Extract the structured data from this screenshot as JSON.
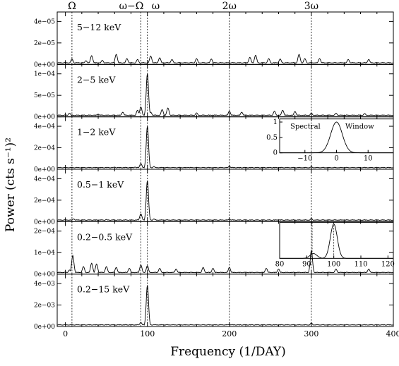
{
  "chart_data": {
    "type": "line",
    "xlabel": "Frequency (1/DAY)",
    "ylabel": "Power (cts s⁻¹)²",
    "xlim": [
      -10,
      400
    ],
    "x_ticks": [
      "0",
      "100",
      "200",
      "300",
      "400"
    ],
    "top_labels": [
      {
        "label": "Ω",
        "x": 8
      },
      {
        "label": "ω−Ω",
        "x": 92
      },
      {
        "label": "ω",
        "x": 100
      },
      {
        "label": "2ω",
        "x": 200
      },
      {
        "label": "3ω",
        "x": 300
      }
    ],
    "marker_lines": [
      8,
      92,
      100,
      200,
      300
    ],
    "panels": [
      {
        "band": "5−12 keV",
        "ylim": [
          0,
          5e-05
        ],
        "y_ticks": [
          "0e+00",
          "2e−05",
          "4e−05"
        ],
        "peaks": [
          {
            "x": 8,
            "y": 5.5e-06
          },
          {
            "x": 25,
            "y": 3.5e-06
          },
          {
            "x": 32,
            "y": 9.5e-06
          },
          {
            "x": 45,
            "y": 4e-06
          },
          {
            "x": 62,
            "y": 1.1e-05
          },
          {
            "x": 75,
            "y": 6e-06
          },
          {
            "x": 88,
            "y": 5e-06
          },
          {
            "x": 104,
            "y": 9e-06
          },
          {
            "x": 115,
            "y": 7e-06
          },
          {
            "x": 130,
            "y": 5e-06
          },
          {
            "x": 160,
            "y": 6e-06
          },
          {
            "x": 178,
            "y": 5.5e-06
          },
          {
            "x": 225,
            "y": 7.5e-06
          },
          {
            "x": 232,
            "y": 1e-05
          },
          {
            "x": 248,
            "y": 6e-06
          },
          {
            "x": 262,
            "y": 5.5e-06
          },
          {
            "x": 285,
            "y": 1.1e-05
          },
          {
            "x": 292,
            "y": 6e-06
          },
          {
            "x": 310,
            "y": 6e-06
          },
          {
            "x": 345,
            "y": 5e-06
          },
          {
            "x": 370,
            "y": 5e-06
          }
        ]
      },
      {
        "band": "2−5 keV",
        "ylim": [
          0,
          0.00013
        ],
        "y_ticks": [
          "0e+00",
          "5e−05",
          "1e−04"
        ],
        "peaks": [
          {
            "x": 5,
            "y": 9e-06
          },
          {
            "x": 40,
            "y": 6e-06
          },
          {
            "x": 70,
            "y": 1.2e-05
          },
          {
            "x": 88,
            "y": 1.8e-05
          },
          {
            "x": 92,
            "y": 2.8e-05
          },
          {
            "x": 100,
            "y": 0.00013
          },
          {
            "x": 104,
            "y": 1.2e-05
          },
          {
            "x": 118,
            "y": 2e-05
          },
          {
            "x": 125,
            "y": 2.5e-05
          },
          {
            "x": 160,
            "y": 1e-05
          },
          {
            "x": 200,
            "y": 1.5e-05
          },
          {
            "x": 215,
            "y": 1.2e-05
          },
          {
            "x": 255,
            "y": 1.5e-05
          },
          {
            "x": 265,
            "y": 1.8e-05
          },
          {
            "x": 280,
            "y": 1.4e-05
          },
          {
            "x": 300,
            "y": 9e-06
          },
          {
            "x": 330,
            "y": 9e-06
          },
          {
            "x": 365,
            "y": 8e-06
          }
        ]
      },
      {
        "band": "1−2 keV",
        "ylim": [
          0,
          0.00042
        ],
        "y_ticks": [
          "0e+00",
          "2e−04",
          "4e−04"
        ],
        "peaks": [
          {
            "x": 8,
            "y": 1.2e-05
          },
          {
            "x": 60,
            "y": 1.5e-05
          },
          {
            "x": 85,
            "y": 1.5e-05
          },
          {
            "x": 92,
            "y": 5e-05
          },
          {
            "x": 100,
            "y": 0.00042
          },
          {
            "x": 108,
            "y": 2e-05
          },
          {
            "x": 150,
            "y": 1.2e-05
          },
          {
            "x": 200,
            "y": 2.2e-05
          },
          {
            "x": 250,
            "y": 1.2e-05
          },
          {
            "x": 300,
            "y": 1.8e-05
          },
          {
            "x": 350,
            "y": 1e-05
          }
        ]
      },
      {
        "band": "0.5−1 keV",
        "ylim": [
          0,
          0.00042
        ],
        "y_ticks": [
          "0e+00",
          "2e−04",
          "4e−04"
        ],
        "peaks": [
          {
            "x": 10,
            "y": 2e-05
          },
          {
            "x": 50,
            "y": 1.5e-05
          },
          {
            "x": 92,
            "y": 7e-05
          },
          {
            "x": 100,
            "y": 0.0004
          },
          {
            "x": 108,
            "y": 2e-05
          },
          {
            "x": 160,
            "y": 1.2e-05
          },
          {
            "x": 200,
            "y": 1.8e-05
          },
          {
            "x": 260,
            "y": 1.2e-05
          },
          {
            "x": 300,
            "y": 2.5e-05
          },
          {
            "x": 340,
            "y": 1e-05
          }
        ]
      },
      {
        "band": "0.2−0.5 keV",
        "ylim": [
          0,
          0.00025
        ],
        "y_ticks": [
          "0e+00",
          "1e−04",
          "2e−04"
        ],
        "peaks": [
          {
            "x": 5,
            "y": 2e-05
          },
          {
            "x": 9,
            "y": 0.000105
          },
          {
            "x": 22,
            "y": 4e-05
          },
          {
            "x": 32,
            "y": 6e-05
          },
          {
            "x": 38,
            "y": 5.5e-05
          },
          {
            "x": 50,
            "y": 4e-05
          },
          {
            "x": 62,
            "y": 3.5e-05
          },
          {
            "x": 78,
            "y": 3e-05
          },
          {
            "x": 92,
            "y": 5e-05
          },
          {
            "x": 100,
            "y": 4.5e-05
          },
          {
            "x": 115,
            "y": 3e-05
          },
          {
            "x": 135,
            "y": 2.5e-05
          },
          {
            "x": 168,
            "y": 3.5e-05
          },
          {
            "x": 180,
            "y": 3e-05
          },
          {
            "x": 200,
            "y": 3.5e-05
          },
          {
            "x": 245,
            "y": 3e-05
          },
          {
            "x": 260,
            "y": 2.5e-05
          },
          {
            "x": 300,
            "y": 0.000135
          },
          {
            "x": 330,
            "y": 2.5e-05
          },
          {
            "x": 370,
            "y": 2.5e-05
          }
        ]
      },
      {
        "band": "0.2−15 keV",
        "ylim": [
          0,
          0.0045
        ],
        "y_ticks": [
          "0e+00",
          "2e−03",
          "4e−03"
        ],
        "peaks": [
          {
            "x": 8,
            "y": 0.00012
          },
          {
            "x": 50,
            "y": 8e-05
          },
          {
            "x": 92,
            "y": 0.00035
          },
          {
            "x": 100,
            "y": 0.0043
          },
          {
            "x": 108,
            "y": 0.00012
          },
          {
            "x": 200,
            "y": 0.00015
          },
          {
            "x": 300,
            "y": 0.0003
          },
          {
            "x": 350,
            "y": 6e-05
          }
        ]
      }
    ],
    "insets": [
      {
        "panel": 3,
        "title_left": "Spectral",
        "title_right": "Window",
        "xlim": [
          -18,
          18
        ],
        "ylim": [
          0,
          1.1
        ],
        "x_ticks": [
          "−10",
          "0",
          "10"
        ],
        "y_ticks": [
          "0",
          "0.5",
          "1"
        ],
        "peaks": [
          {
            "x": 0,
            "y": 1.0
          }
        ]
      },
      {
        "panel": 5,
        "xlim": [
          80,
          122
        ],
        "ylim": [
          0,
          0.0045
        ],
        "x_ticks": [
          "80",
          "90",
          "100",
          "110",
          "120"
        ],
        "markers": [
          92,
          100
        ],
        "peaks": [
          {
            "x": 92.5,
            "y": 0.0006
          },
          {
            "x": 100,
            "y": 0.0043
          }
        ]
      }
    ]
  }
}
